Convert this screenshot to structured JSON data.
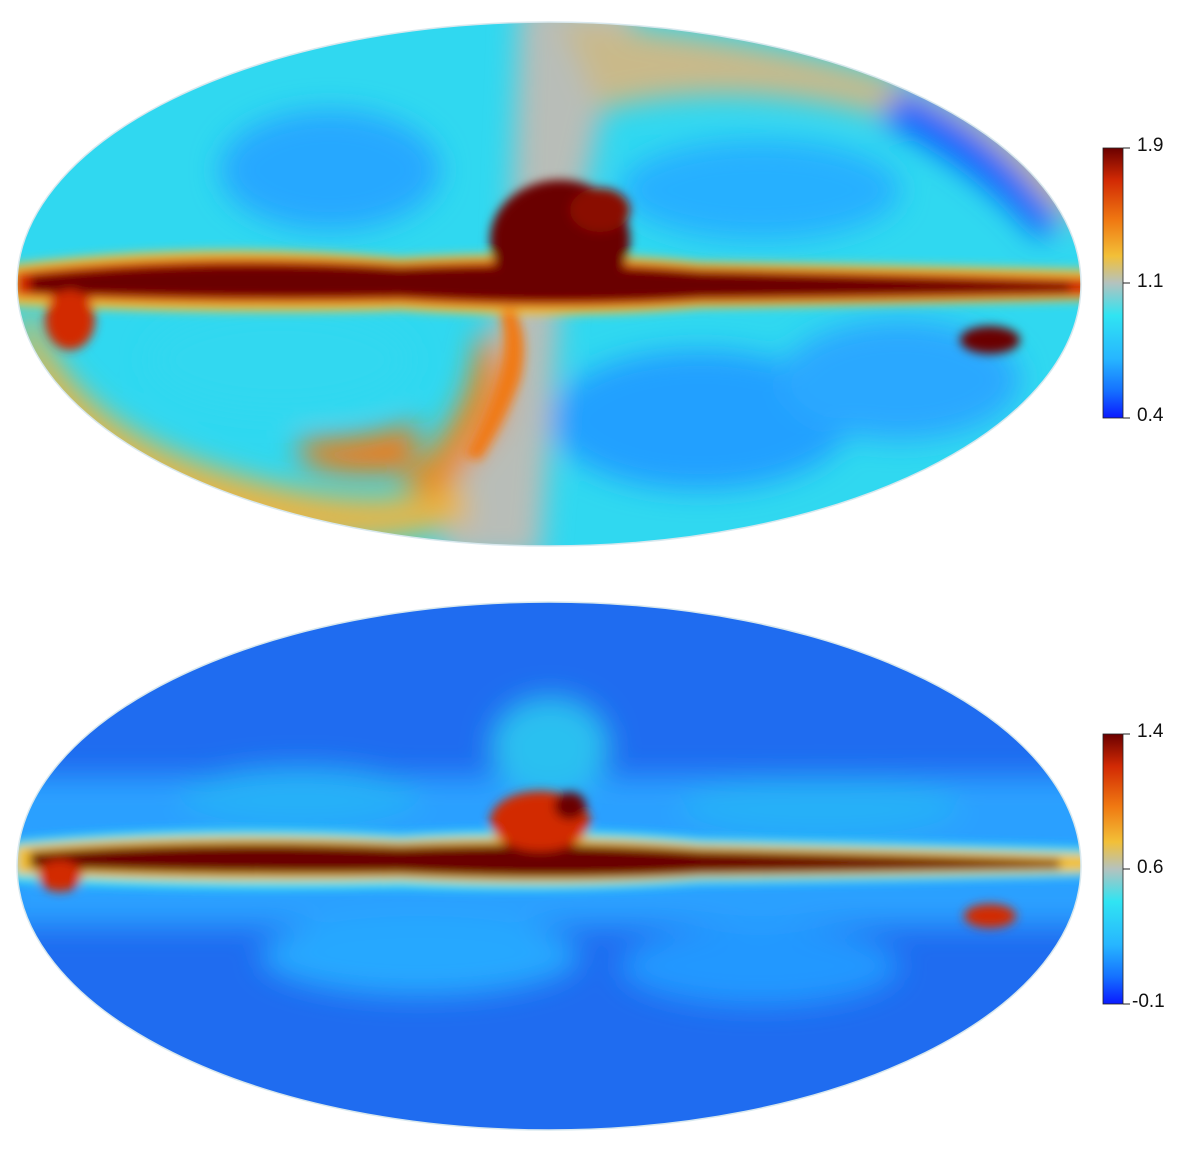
{
  "colors": {
    "colormap": [
      "#0a1aff",
      "#1570ff",
      "#27b6ff",
      "#30e4f2",
      "#b4c2be",
      "#f2c038",
      "#f07a12",
      "#d22a04",
      "#6b0000"
    ],
    "background": "#ffffff"
  },
  "maps": [
    {
      "id": "top",
      "projection": "mollweide",
      "colorbar": {
        "max_label": "1.9",
        "mid_label": "1.1",
        "min_label": "0.4"
      }
    },
    {
      "id": "bottom",
      "projection": "mollweide",
      "colorbar": {
        "max_label": "1.4",
        "mid_label": "0.6",
        "min_label": "-0.1"
      }
    }
  ]
}
